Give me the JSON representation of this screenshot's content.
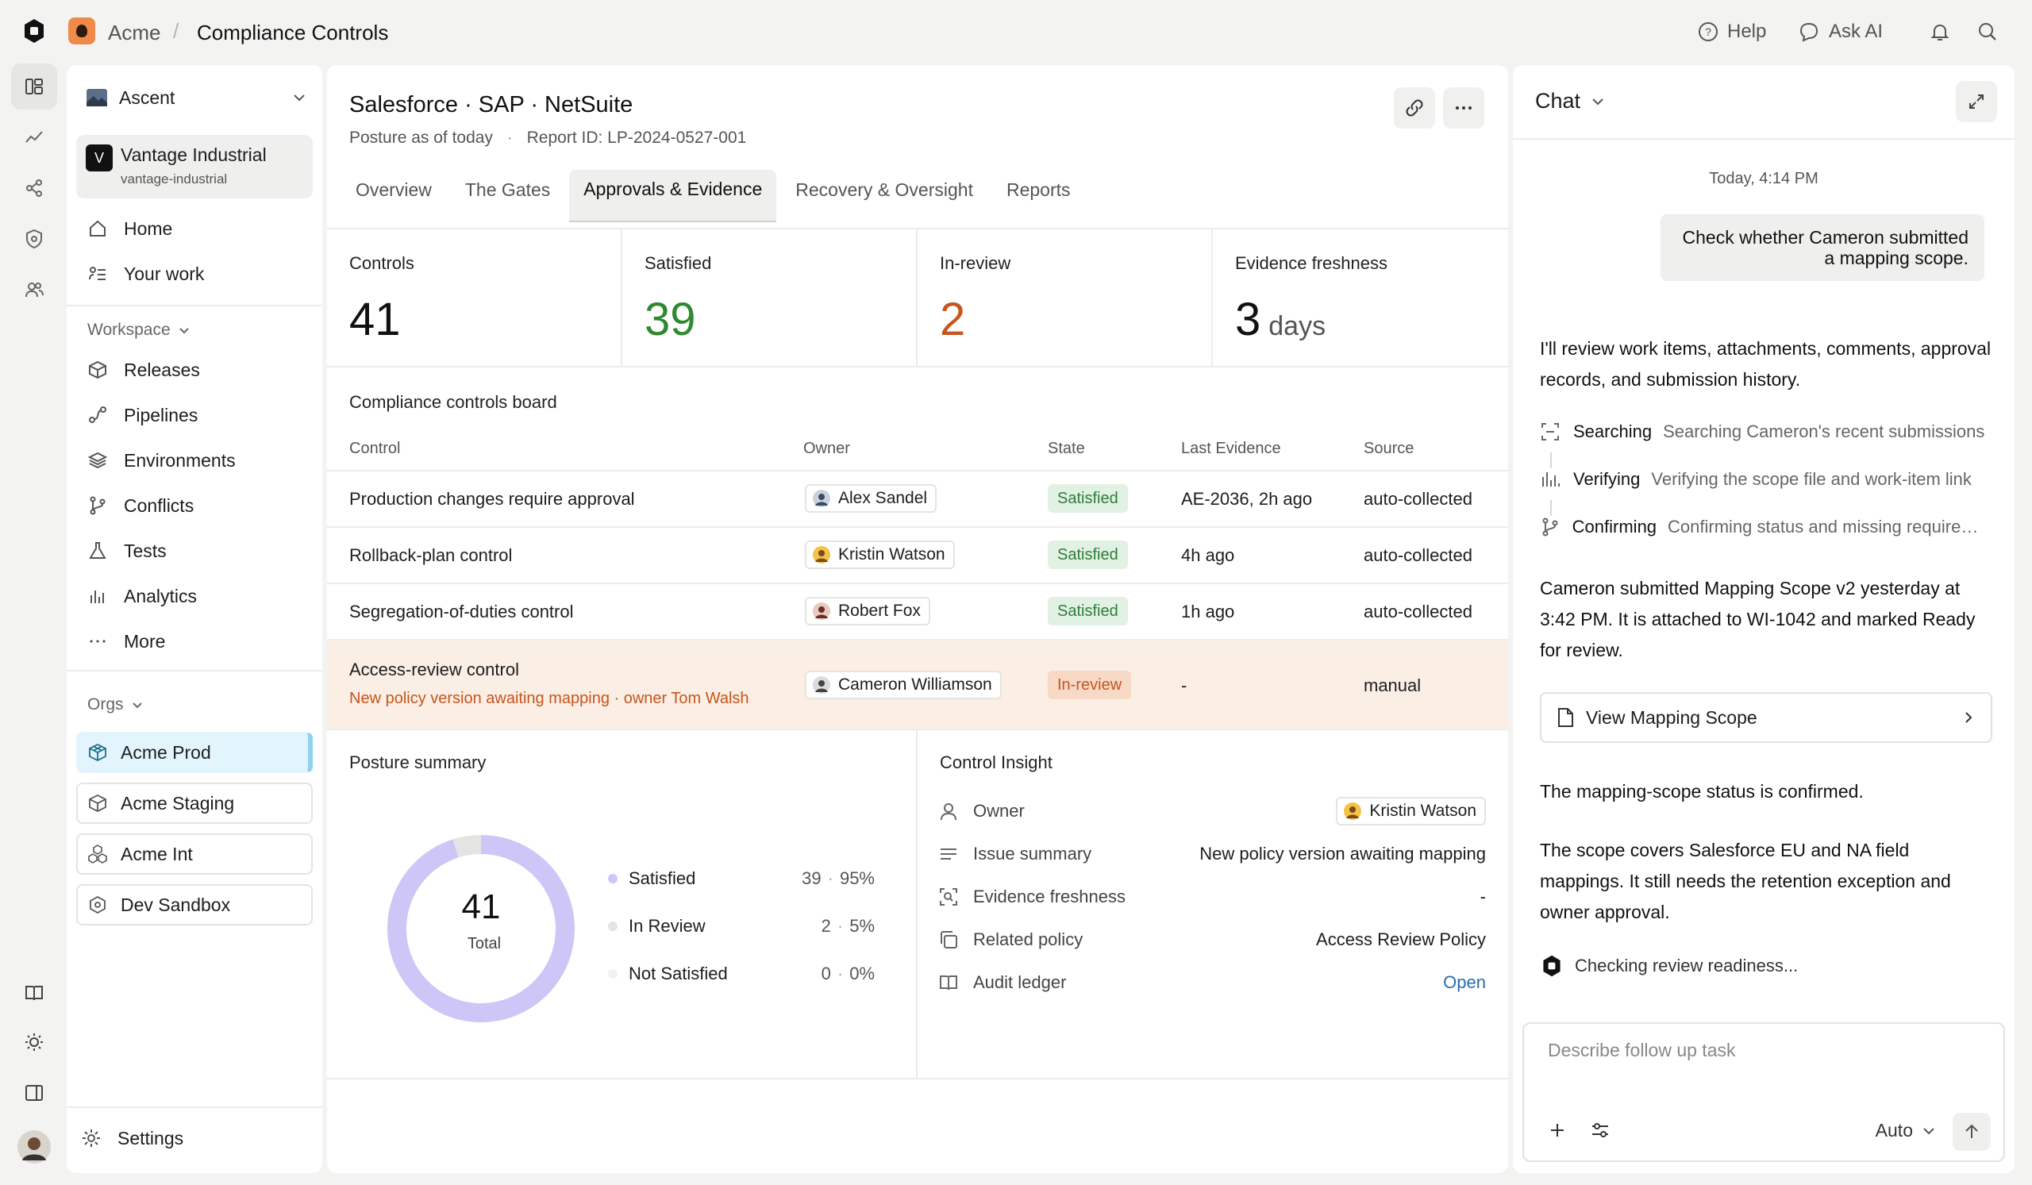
{
  "topbar": {
    "org": "Acme",
    "page": "Compliance Controls",
    "help": "Help",
    "ask_ai": "Ask AI"
  },
  "sidebar": {
    "workspace_selector": "Ascent",
    "company": {
      "initial": "V",
      "name": "Vantage Industrial",
      "slug": "vantage-industrial"
    },
    "nav": [
      {
        "label": "Home",
        "icon": "home-icon"
      },
      {
        "label": "Your work",
        "icon": "list-icon"
      }
    ],
    "workspace_label": "Workspace",
    "workspace_items": [
      {
        "label": "Releases",
        "icon": "box-icon"
      },
      {
        "label": "Pipelines",
        "icon": "pipeline-icon"
      },
      {
        "label": "Environments",
        "icon": "layers-icon"
      },
      {
        "label": "Conflicts",
        "icon": "branch-icon"
      },
      {
        "label": "Tests",
        "icon": "flask-icon"
      },
      {
        "label": "Analytics",
        "icon": "bars-icon"
      },
      {
        "label": "More",
        "icon": "ellipsis-icon"
      }
    ],
    "orgs_label": "Orgs",
    "orgs": [
      {
        "label": "Acme Prod",
        "active": true
      },
      {
        "label": "Acme Staging",
        "active": false
      },
      {
        "label": "Acme Int",
        "active": false
      },
      {
        "label": "Dev Sandbox",
        "active": false
      }
    ],
    "settings": "Settings"
  },
  "main": {
    "title": "Salesforce · SAP · NetSuite",
    "posture": "Posture as of today",
    "report_id": "Report ID: LP-2024-0527-001",
    "tabs": [
      {
        "label": "Overview",
        "active": false
      },
      {
        "label": "The Gates",
        "active": false
      },
      {
        "label": "Approvals & Evidence",
        "active": true
      },
      {
        "label": "Recovery & Oversight",
        "active": false
      },
      {
        "label": "Reports",
        "active": false
      }
    ],
    "stats": [
      {
        "label": "Controls",
        "value": "41",
        "unit": "",
        "color": "#111111"
      },
      {
        "label": "Satisfied",
        "value": "39",
        "unit": "",
        "color": "#2f8a2f"
      },
      {
        "label": "In-review",
        "value": "2",
        "unit": "",
        "color": "#c4561e"
      },
      {
        "label": "Evidence freshness",
        "value": "3",
        "unit": "days",
        "color": "#111111"
      }
    ],
    "board": {
      "title": "Compliance controls board",
      "headers": [
        "Control",
        "Owner",
        "State",
        "Last Evidence",
        "Source"
      ],
      "rows": [
        {
          "control": "Production changes require approval",
          "owner": "Alex Sandel",
          "state": "Satisfied",
          "last_evidence": "AE-2036, 2h ago",
          "source": "auto-collected"
        },
        {
          "control": "Rollback-plan control",
          "owner": "Kristin Watson",
          "state": "Satisfied",
          "last_evidence": "4h ago",
          "source": "auto-collected"
        },
        {
          "control": "Segregation-of-duties control",
          "owner": "Robert Fox",
          "state": "Satisfied",
          "last_evidence": "1h ago",
          "source": "auto-collected"
        },
        {
          "control": "Access-review control",
          "note": "New policy version awaiting mapping · owner Tom Walsh",
          "owner": "Cameron Williamson",
          "state": "In-review",
          "last_evidence": "-",
          "source": "manual"
        }
      ]
    },
    "posture_summary": {
      "title": "Posture summary",
      "total_value": "41",
      "total_label": "Total",
      "legend": [
        {
          "label": "Satisfied",
          "count": "39",
          "pct": "95%",
          "color": "#cdc6f7"
        },
        {
          "label": "In Review",
          "count": "2",
          "pct": "5%",
          "color": "#e4e4e2"
        },
        {
          "label": "Not Satisfied",
          "count": "0",
          "pct": "0%",
          "color": "#f2f2f1"
        }
      ]
    },
    "insight": {
      "title": "Control Insight",
      "owner_label": "Owner",
      "owner_value": "Kristin Watson",
      "issue_label": "Issue summary",
      "issue_value": "New policy version awaiting mapping",
      "freshness_label": "Evidence freshness",
      "freshness_value": "-",
      "policy_label": "Related policy",
      "policy_value": "Access Review Policy",
      "ledger_label": "Audit ledger",
      "ledger_value": "Open"
    }
  },
  "chart_data": {
    "type": "pie",
    "categories": [
      "Satisfied",
      "In Review",
      "Not Satisfied"
    ],
    "values": [
      39,
      2,
      0
    ],
    "percent": [
      95,
      5,
      0
    ],
    "title": "Posture summary",
    "center_text": "41 Total"
  },
  "chat": {
    "title": "Chat",
    "timestamp": "Today, 4:14 PM",
    "user_message": "Check whether Cameron submitted a mapping scope.",
    "reply_intro": "I'll review work items, attachments, comments, approval records, and submission history.",
    "steps": [
      {
        "name": "Searching",
        "desc": "Searching Cameron's recent submissions"
      },
      {
        "name": "Verifying",
        "desc": "Verifying the scope file and work-item link"
      },
      {
        "name": "Confirming",
        "desc": "Confirming status and missing requirements"
      }
    ],
    "finding": "Cameron submitted Mapping Scope v2 yesterday at 3:42 PM. It is attached to WI-1042 and marked Ready for review.",
    "view_button": "View Mapping Scope",
    "confirmed": "The mapping-scope status is confirmed.",
    "scope_note": "The scope covers Salesforce EU and NA field mappings. It still needs the retention exception and owner approval.",
    "working": "Checking review readiness...",
    "composer_placeholder": "Describe follow up task",
    "mode": "Auto"
  }
}
